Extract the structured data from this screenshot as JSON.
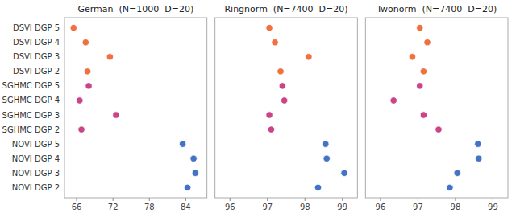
{
  "chart_data": [
    {
      "type": "scatter",
      "orientation": "horizontal",
      "title": "German  (N=1000  D=20)",
      "categories": [
        "DSVI DGP 5",
        "DSVI DGP 4",
        "DSVI DGP 3",
        "DSVI DGP 2",
        "SGHMC DGP 5",
        "SGHMC DGP 4",
        "SGHMC DGP 3",
        "SGHMC DGP 2",
        "NOVI DGP 5",
        "NOVI DGP 4",
        "NOVI DGP 3",
        "NOVI DGP 2"
      ],
      "values": [
        65.5,
        67.5,
        71.5,
        67.8,
        68.0,
        66.5,
        72.5,
        66.8,
        83.5,
        85.3,
        85.6,
        84.3
      ],
      "colors": [
        "#f07040",
        "#f07040",
        "#f07040",
        "#f07040",
        "#cc4488",
        "#cc4488",
        "#cc4488",
        "#cc4488",
        "#4472c4",
        "#4472c4",
        "#4472c4",
        "#4472c4"
      ],
      "xlim": [
        64.0,
        87.5
      ],
      "xticks": [
        66,
        72,
        78,
        84
      ],
      "grid": false
    },
    {
      "type": "scatter",
      "orientation": "horizontal",
      "title": "Ringnorm  (N=7400  D=20)",
      "categories": [
        null,
        null,
        null,
        null,
        null,
        null,
        null,
        null,
        null,
        null,
        null,
        null
      ],
      "values": [
        97.05,
        97.2,
        98.1,
        97.35,
        97.4,
        97.45,
        97.05,
        97.1,
        98.55,
        98.58,
        99.05,
        98.35
      ],
      "colors": [
        "#f07040",
        "#f07040",
        "#f07040",
        "#f07040",
        "#cc4488",
        "#cc4488",
        "#cc4488",
        "#cc4488",
        "#4472c4",
        "#4472c4",
        "#4472c4",
        "#4472c4"
      ],
      "xlim": [
        95.6,
        99.4
      ],
      "xticks": [
        96,
        97,
        98,
        99
      ],
      "grid": false
    },
    {
      "type": "scatter",
      "orientation": "horizontal",
      "title": "Twonorm  (N=7400  D=20)",
      "categories": [
        null,
        null,
        null,
        null,
        null,
        null,
        null,
        null,
        null,
        null,
        null,
        null
      ],
      "values": [
        97.05,
        97.25,
        96.85,
        97.15,
        97.05,
        96.35,
        97.15,
        97.55,
        98.6,
        98.62,
        98.05,
        97.85
      ],
      "colors": [
        "#f07040",
        "#f07040",
        "#f07040",
        "#f07040",
        "#cc4488",
        "#cc4488",
        "#cc4488",
        "#cc4488",
        "#4472c4",
        "#4472c4",
        "#4472c4",
        "#4472c4"
      ],
      "xlim": [
        95.6,
        99.4
      ],
      "xticks": [
        96,
        97,
        98,
        99
      ],
      "grid": false
    }
  ]
}
